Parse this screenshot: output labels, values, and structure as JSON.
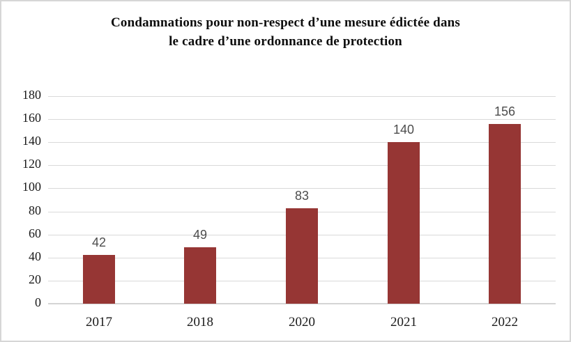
{
  "figure": {
    "title_line1": "Condamnations pour non-respect d’une mesure édictée dans",
    "title_line2": "le cadre d’une ordonnance de protection"
  },
  "chart_data": {
    "type": "bar",
    "title": "Condamnations pour non-respect d’une mesure édictée dans le cadre d’une ordonnance de protection",
    "categories": [
      "2017",
      "2018",
      "2020",
      "2021",
      "2022"
    ],
    "values": [
      42,
      49,
      83,
      140,
      156
    ],
    "data_labels": [
      "42",
      "49",
      "83",
      "140",
      "156"
    ],
    "xlabel": "",
    "ylabel": "",
    "ylim": [
      0,
      180
    ],
    "yticks": [
      0,
      20,
      40,
      60,
      80,
      100,
      120,
      140,
      160,
      180
    ],
    "grid": true,
    "legend": false,
    "colors": {
      "bar": "#963634",
      "gridline": "#d9d9d9",
      "axis_line": "#d4d4d4",
      "data_label": "#4d4d4d",
      "tick_label": "#1a1a1a",
      "title": "#0d0d0d",
      "figure_border": "#d6d6d6"
    }
  }
}
